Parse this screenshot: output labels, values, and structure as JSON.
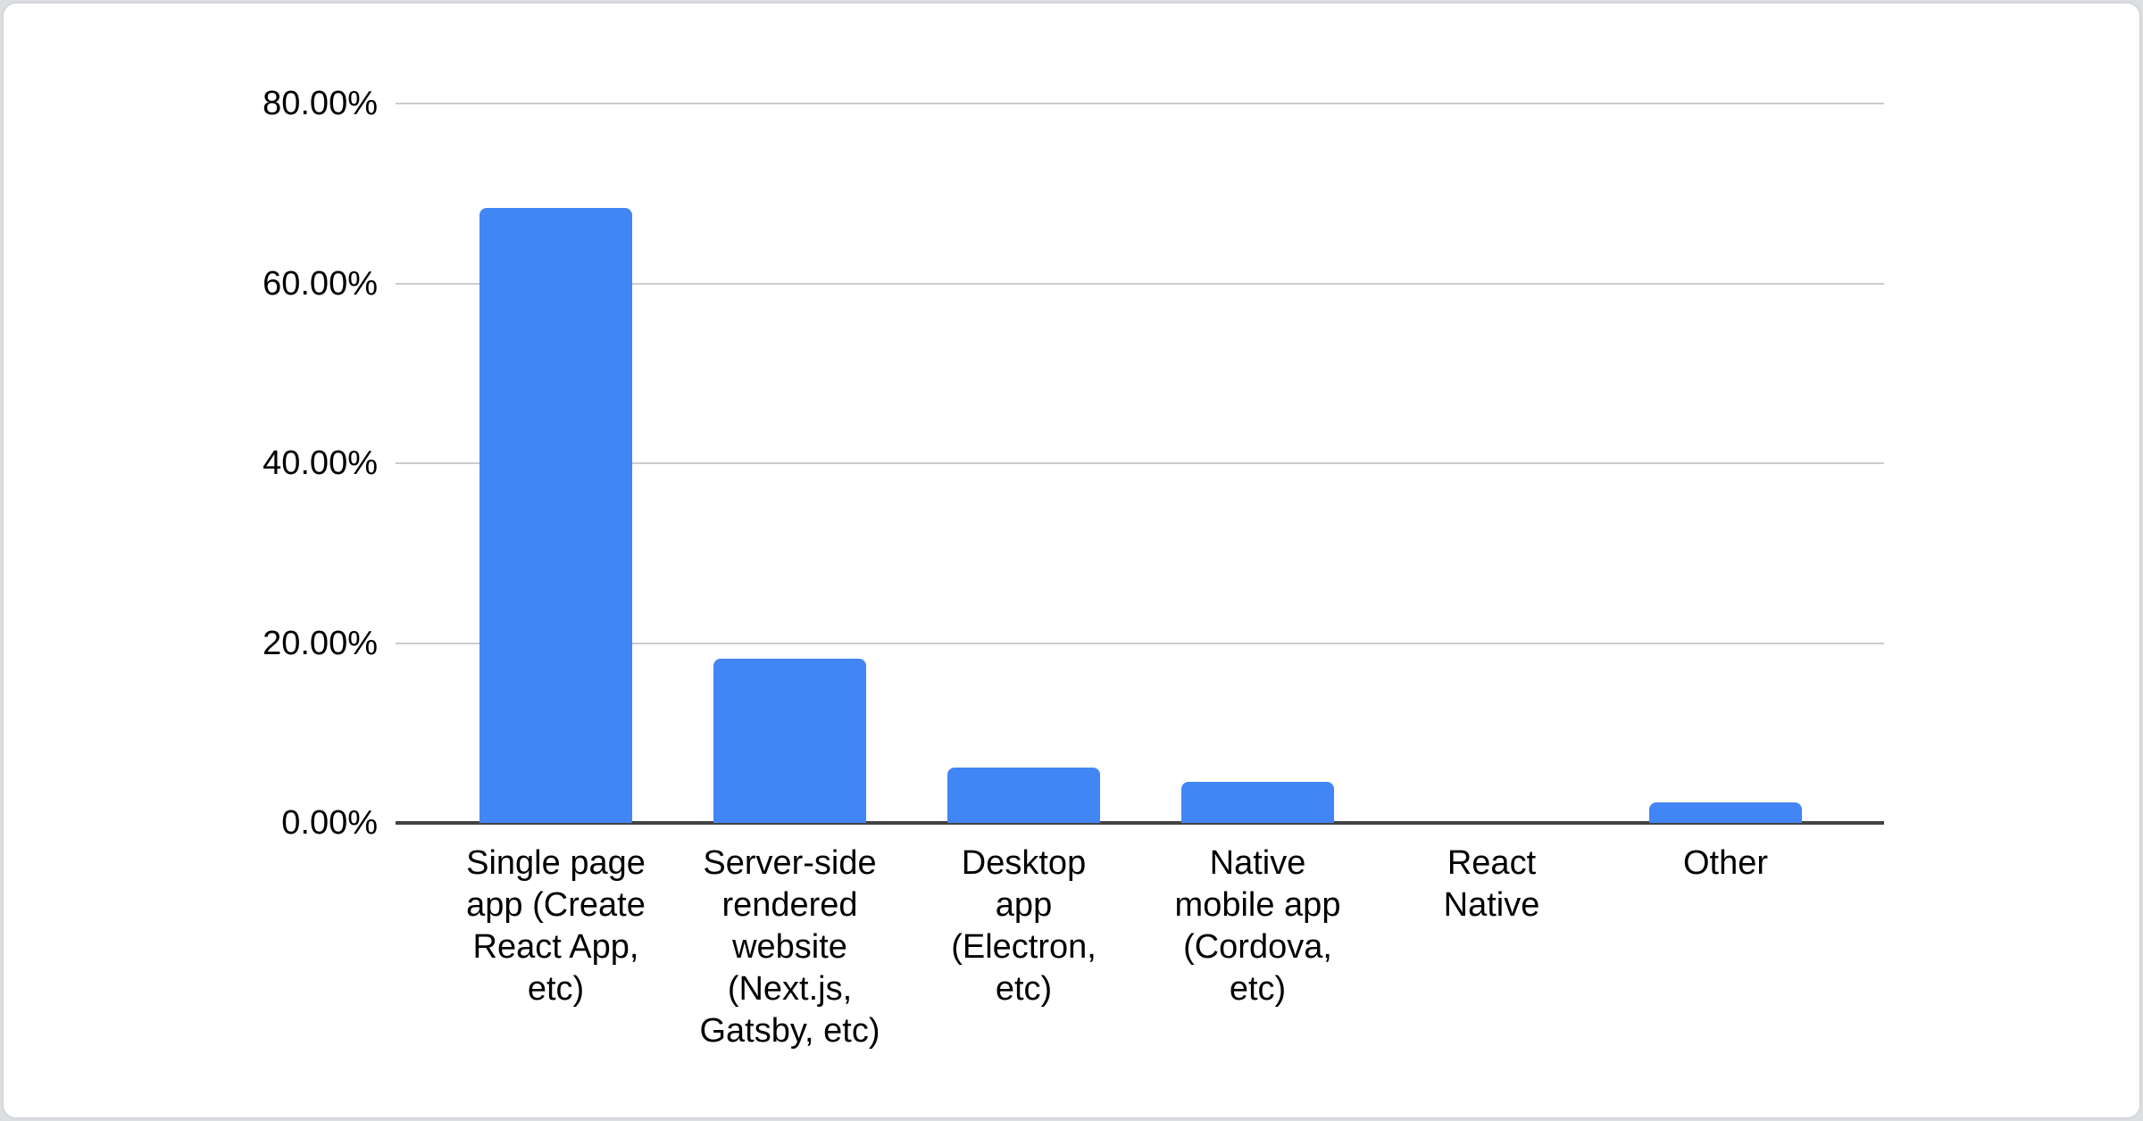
{
  "chart_data": {
    "type": "bar",
    "title": "",
    "xlabel": "",
    "ylabel": "",
    "categories": [
      "Single page app (Create React App, etc)",
      "Server-side rendered website (Next.js, Gatsby, etc)",
      "Desktop app (Electron, etc)",
      "Native mobile app (Cordova, etc)",
      "React Native",
      "Other"
    ],
    "category_lines": [
      [
        "Single page",
        "app (Create",
        "React App,",
        "etc)"
      ],
      [
        "Server-side",
        "rendered",
        "website",
        "(Next.js,",
        "Gatsby, etc)"
      ],
      [
        "Desktop",
        "app",
        "(Electron,",
        "etc)"
      ],
      [
        "Native",
        "mobile app",
        "(Cordova,",
        "etc)"
      ],
      [
        "React",
        "Native"
      ],
      [
        "Other"
      ]
    ],
    "values": [
      68.4,
      18.3,
      6.2,
      4.6,
      0,
      2.3
    ],
    "y_ticks": [
      {
        "value": 80,
        "label": "80.00%"
      },
      {
        "value": 60,
        "label": "60.00%"
      },
      {
        "value": 40,
        "label": "40.00%"
      },
      {
        "value": 20,
        "label": "20.00%"
      },
      {
        "value": 0,
        "label": "0.00%"
      }
    ],
    "ylim": [
      0,
      80
    ],
    "grid": true,
    "legend": "none",
    "colors": {
      "bar": "#4285f4",
      "gridline": "#cccccc",
      "axis_line": "#424242",
      "label_text": "#000000",
      "card_background": "#ffffff",
      "card_border": "#d3d6da"
    }
  }
}
